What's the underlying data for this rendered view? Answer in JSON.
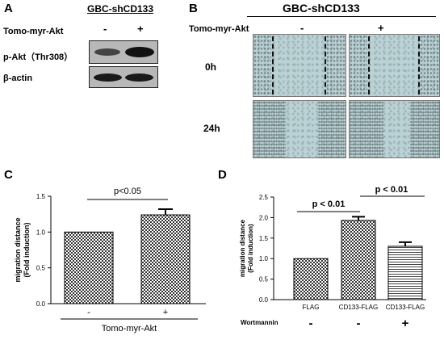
{
  "panel_a": {
    "label": "A",
    "header": "GBC-shCD133",
    "treatment_label": "Tomo-myr-Akt",
    "signs": [
      "-",
      "+"
    ],
    "blots": [
      "p-Akt（Thr308）",
      "β-actin"
    ]
  },
  "panel_b": {
    "label": "B",
    "header": "GBC-shCD133",
    "treatment_label": "Tomo-myr-Akt",
    "signs": [
      "-",
      "+"
    ],
    "times": [
      "0h",
      "24h"
    ]
  },
  "panel_c": {
    "label": "C"
  },
  "panel_d": {
    "label": "D"
  },
  "chart_data": [
    {
      "type": "bar",
      "categories": [
        "-",
        "+"
      ],
      "values": [
        1.0,
        1.24
      ],
      "errors": [
        0,
        0.08
      ],
      "ylabel_line1": "migration distance",
      "ylabel_line2": "(Fold induction)",
      "xlabel": "Tomo-myr-Akt",
      "ylim": [
        0,
        1.5
      ],
      "yticks": [
        "0.0",
        "0.5",
        "1.0",
        "1.5"
      ],
      "ytick_values": [
        0,
        0.5,
        1.0,
        1.5
      ],
      "significance": "p<0.05",
      "pattern": "checker"
    },
    {
      "type": "bar",
      "categories": [
        "FLAG",
        "CD133-FLAG",
        "CD133-FLAG"
      ],
      "values": [
        1.0,
        1.93,
        1.3
      ],
      "errors": [
        0,
        0.09,
        0.1
      ],
      "ylabel_line1": "migration distance",
      "ylabel_line2": "(Fold induction)",
      "ylim": [
        0,
        2.5
      ],
      "yticks": [
        "0.0",
        "0.5",
        "1.0",
        "1.5",
        "2.0",
        "2.5"
      ],
      "ytick_values": [
        0,
        0.5,
        1.0,
        1.5,
        2.0,
        2.5
      ],
      "row_label": "Wortmannin",
      "row_signs": [
        "-",
        "-",
        "+"
      ],
      "significance": [
        "p < 0.01",
        "p < 0.01"
      ],
      "patterns": [
        "checker",
        "checker",
        "hstripe"
      ]
    }
  ],
  "colors": {
    "blot_bg": "#b8b8b8",
    "band": "#1e1e1e",
    "micro_bg": "#b9d2d6"
  }
}
